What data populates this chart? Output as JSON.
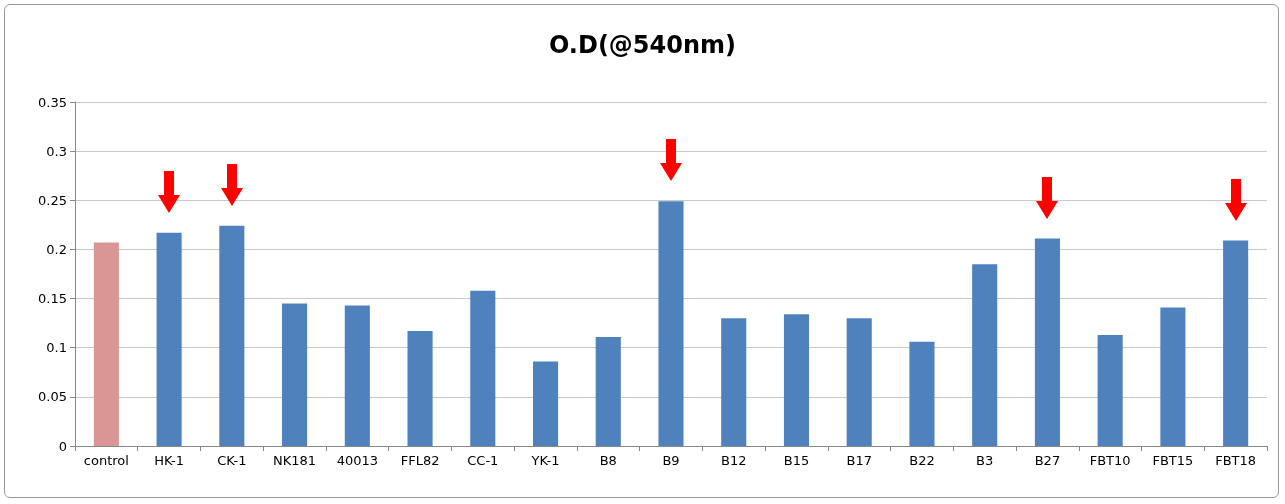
{
  "chart_data": {
    "type": "bar",
    "title": "O.D(@540nm)",
    "categories": [
      "control",
      "HK-1",
      "CK-1",
      "NK181",
      "40013",
      "FFL82",
      "CC-1",
      "YK-1",
      "B8",
      "B9",
      "B12",
      "B15",
      "B17",
      "B22",
      "B3",
      "B27",
      "FBT10",
      "FBT15",
      "FBT18"
    ],
    "values": [
      0.207,
      0.217,
      0.224,
      0.145,
      0.143,
      0.117,
      0.158,
      0.086,
      0.111,
      0.249,
      0.13,
      0.134,
      0.13,
      0.106,
      0.185,
      0.211,
      0.113,
      0.141,
      0.209
    ],
    "colors": [
      "#d99694",
      "#4f81bd",
      "#4f81bd",
      "#4f81bd",
      "#4f81bd",
      "#4f81bd",
      "#4f81bd",
      "#4f81bd",
      "#4f81bd",
      "#4f81bd",
      "#4f81bd",
      "#4f81bd",
      "#4f81bd",
      "#4f81bd",
      "#4f81bd",
      "#4f81bd",
      "#4f81bd",
      "#4f81bd",
      "#4f81bd"
    ],
    "ylim": [
      0,
      0.35
    ],
    "yticks": [
      0,
      0.05,
      0.1,
      0.15,
      0.2,
      0.25,
      0.3,
      0.35
    ],
    "grid": "y"
  }
}
